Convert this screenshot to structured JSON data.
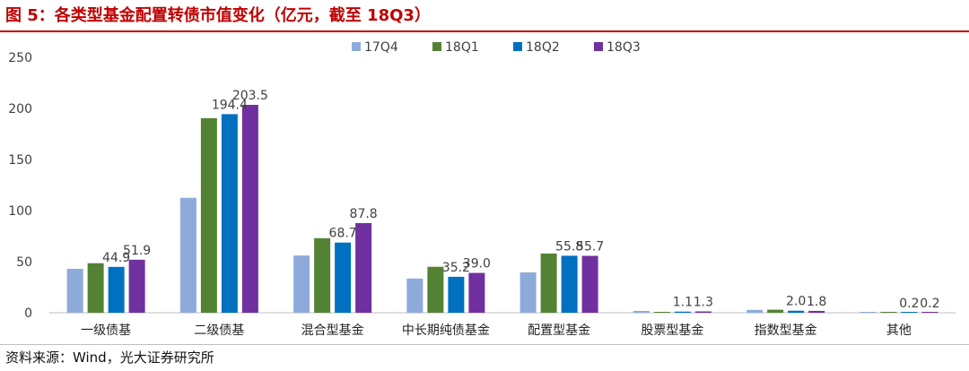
{
  "header": {
    "title": "图 5：各类型基金配置转债市值变化（亿元，截至 18Q3）"
  },
  "footer": {
    "source": "资料来源：Wind，光大证券研究所"
  },
  "colors": {
    "title": "#c00000",
    "title_bar": "#c00000"
  },
  "chart_data": {
    "type": "bar",
    "title": "",
    "xlabel": "",
    "ylabel": "",
    "ylim": [
      0,
      250
    ],
    "yticks": [
      0,
      50,
      100,
      150,
      200,
      250
    ],
    "grid": false,
    "legend_position": "top-center",
    "categories": [
      "一级债基",
      "二级债基",
      "混合型基金",
      "中长期纯债基金",
      "配置型基金",
      "股票型基金",
      "指数型基金",
      "其他"
    ],
    "series": [
      {
        "name": "17Q4",
        "color": "#8eaadb",
        "values": [
          43.0,
          112.5,
          56.0,
          33.5,
          39.5,
          1.8,
          2.8,
          0.2
        ]
      },
      {
        "name": "18Q1",
        "color": "#548235",
        "values": [
          48.5,
          190.5,
          73.0,
          45.0,
          58.0,
          0.8,
          3.0,
          0.2
        ]
      },
      {
        "name": "18Q2",
        "color": "#0070c0",
        "values": [
          44.9,
          194.4,
          68.7,
          35.2,
          55.8,
          1.1,
          2.0,
          0.2
        ]
      },
      {
        "name": "18Q3",
        "color": "#7030a0",
        "values": [
          51.9,
          203.5,
          87.8,
          39.0,
          55.7,
          1.3,
          1.8,
          0.2
        ]
      }
    ],
    "data_labels": [
      {
        "category": 0,
        "series": 2,
        "text": "44.9"
      },
      {
        "category": 0,
        "series": 3,
        "text": "51.9"
      },
      {
        "category": 1,
        "series": 2,
        "text": "194.4"
      },
      {
        "category": 1,
        "series": 3,
        "text": "203.5"
      },
      {
        "category": 2,
        "series": 2,
        "text": "68.7"
      },
      {
        "category": 2,
        "series": 3,
        "text": "87.8"
      },
      {
        "category": 3,
        "series": 2,
        "text": "35.2"
      },
      {
        "category": 3,
        "series": 3,
        "text": "39.0"
      },
      {
        "category": 4,
        "series": 2,
        "text": "55.8"
      },
      {
        "category": 4,
        "series": 3,
        "text": "55.7"
      },
      {
        "category": 5,
        "series": 2,
        "text": "1.1"
      },
      {
        "category": 5,
        "series": 3,
        "text": "1.3"
      },
      {
        "category": 6,
        "series": 2,
        "text": "2.0"
      },
      {
        "category": 6,
        "series": 3,
        "text": "1.8"
      },
      {
        "category": 7,
        "series": 2,
        "text": "0.2"
      },
      {
        "category": 7,
        "series": 3,
        "text": "0.2"
      }
    ]
  }
}
